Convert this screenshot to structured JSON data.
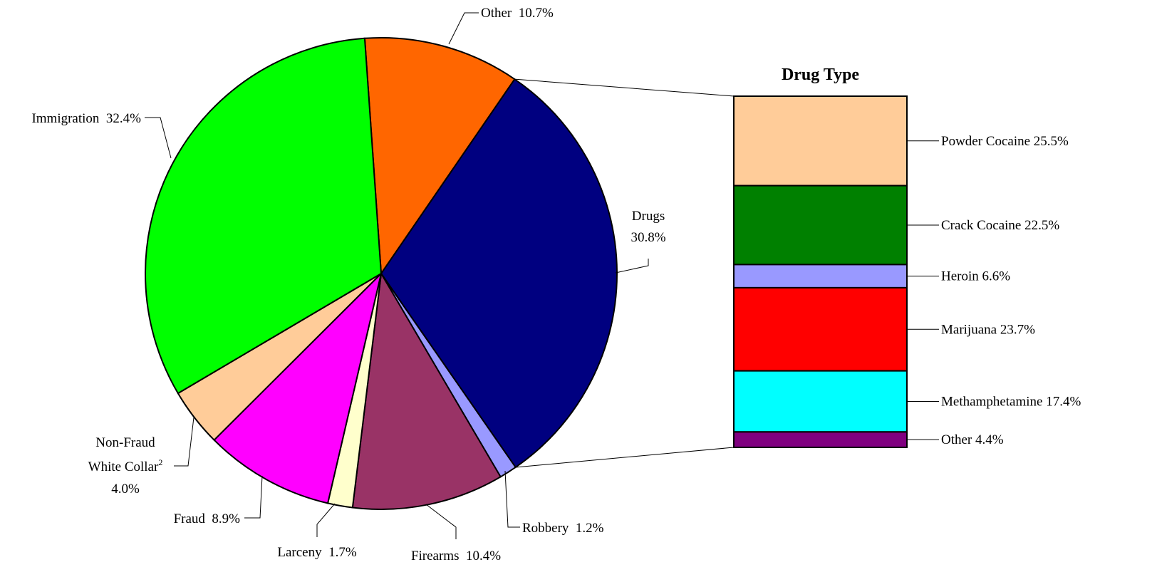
{
  "chart_data": [
    {
      "type": "pie",
      "slices": [
        {
          "label": "Other",
          "value": 10.7,
          "value_label": "10.7%",
          "color": "#FF6600"
        },
        {
          "label": "Drugs",
          "value": 30.8,
          "value_label": "30.8%",
          "color": "#000080"
        },
        {
          "label": "Robbery",
          "value": 1.2,
          "value_label": "1.2%",
          "color": "#9999FF"
        },
        {
          "label": "Firearms",
          "value": 10.4,
          "value_label": "10.4%",
          "color": "#993366"
        },
        {
          "label": "Larceny",
          "value": 1.7,
          "value_label": "1.7%",
          "color": "#FFFFCC"
        },
        {
          "label": "Fraud",
          "value": 8.9,
          "value_label": "8.9%",
          "color": "#FF00FF"
        },
        {
          "label": "Non-Fraud White Collar",
          "label_line1": "Non-Fraud",
          "label_line2": "White Collar",
          "superscript": "2",
          "value": 4.0,
          "value_label": "4.0%",
          "color": "#FFCC99"
        },
        {
          "label": "Immigration",
          "value": 32.4,
          "value_label": "32.4%",
          "color": "#00FF00"
        }
      ]
    },
    {
      "type": "bar",
      "stacked": true,
      "title": "Drug Type",
      "segments": [
        {
          "label": "Powder Cocaine",
          "value": 25.5,
          "value_label": "25.5%",
          "color": "#FFCC99"
        },
        {
          "label": "Crack Cocaine",
          "value": 22.5,
          "value_label": "22.5%",
          "color": "#008000"
        },
        {
          "label": "Heroin",
          "value": 6.6,
          "value_label": "6.6%",
          "color": "#9999FF"
        },
        {
          "label": "Marijuana",
          "value": 23.7,
          "value_label": "23.7%",
          "color": "#FF0000"
        },
        {
          "label": "Methamphetamine",
          "value": 17.4,
          "value_label": "17.4%",
          "color": "#00FFFF"
        },
        {
          "label": "Other",
          "value": 4.4,
          "value_label": "4.4%",
          "color": "#800080"
        }
      ]
    }
  ]
}
